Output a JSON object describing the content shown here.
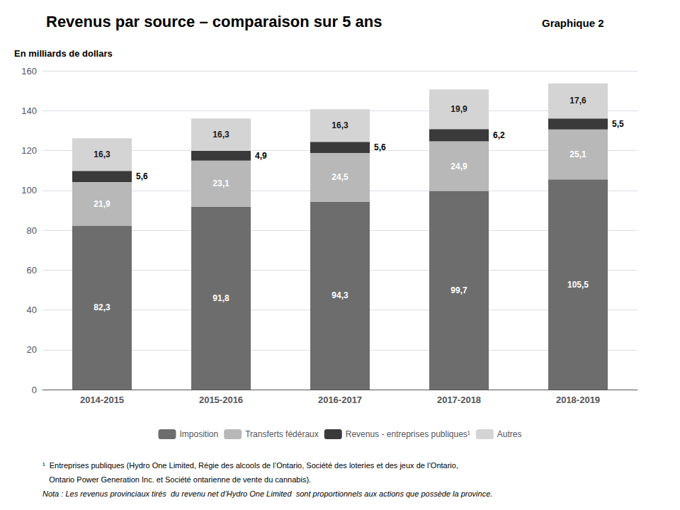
{
  "chart_data": {
    "type": "bar",
    "stacked": true,
    "title": "Revenus par source – comparaison sur 5 ans",
    "subtitle": "Graphique 2",
    "ylabel": "En milliards de dollars",
    "categories": [
      "2014-2015",
      "2015-2016",
      "2016-2017",
      "2017-2018",
      "2018-2019"
    ],
    "series": [
      {
        "name": "Imposition",
        "color": "#6d6d6d",
        "values": [
          82.3,
          91.8,
          94.3,
          99.7,
          105.5
        ],
        "value_labels": [
          "82,3",
          "91,8",
          "94,3",
          "99,7",
          "105,5"
        ]
      },
      {
        "name": "Transferts fédéraux",
        "color": "#b8b8b8",
        "values": [
          21.9,
          23.1,
          24.5,
          24.9,
          25.1
        ],
        "value_labels": [
          "21,9",
          "23,1",
          "24,5",
          "24,9",
          "25,1"
        ]
      },
      {
        "name": "Revenus - entreprises publiques¹",
        "color": "#3a3a3a",
        "values": [
          5.6,
          4.9,
          5.6,
          6.2,
          5.5
        ],
        "value_labels": [
          "5,6",
          "4,9",
          "5,6",
          "6,2",
          "5,5"
        ]
      },
      {
        "name": "Autres",
        "color": "#d4d4d4",
        "values": [
          16.3,
          16.3,
          16.3,
          19.9,
          17.6
        ],
        "value_labels": [
          "16,3",
          "16,3",
          "16,3",
          "19,9",
          "17,6"
        ]
      }
    ],
    "data_labels": true,
    "ylim": [
      0,
      160
    ],
    "yticks": [
      0,
      20,
      40,
      60,
      80,
      100,
      120,
      140,
      160
    ],
    "grid": true,
    "legend": "bottom",
    "footnotes": [
      "¹  Entreprises publiques (Hydro One Limited, Régie des alcools de l’Ontario, Société des loteries et des jeux de l’Ontario,",
      "   Ontario Power Generation Inc. et Société ontarienne de vente du cannabis).",
      "Nota : Les revenus provinciaux tirés  du revenu net d’Hydro One Limited  sont proportionnels aux actions que possède la province."
    ]
  }
}
